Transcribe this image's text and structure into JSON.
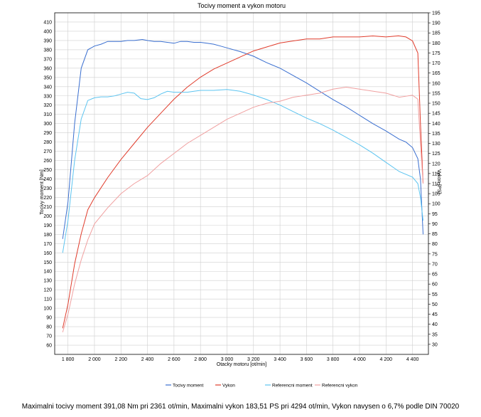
{
  "chart_data": {
    "type": "line",
    "title": "Tocivy moment a vykon motoru",
    "xlabel": "Otacky motoru [ot/min]",
    "ylabel_left": "Tocivy moment [Nm]",
    "ylabel_right": "Vykon [PS]",
    "xlim": [
      1700,
      4520
    ],
    "ylim_left": [
      50,
      420
    ],
    "ylim_right": [
      25,
      195
    ],
    "x_ticks": [
      1800,
      2000,
      2200,
      2400,
      2600,
      2800,
      3000,
      3200,
      3400,
      3600,
      3800,
      4000,
      4200,
      4400
    ],
    "x_tick_labels": [
      "1 800",
      "2 000",
      "2 200",
      "2 400",
      "2 600",
      "2 800",
      "3 000",
      "3 200",
      "3 400",
      "3 600",
      "3 800",
      "4 000",
      "4 200",
      "4 400"
    ],
    "y_left_ticks": [
      60,
      70,
      80,
      90,
      100,
      110,
      120,
      130,
      140,
      150,
      160,
      170,
      180,
      190,
      200,
      210,
      220,
      230,
      240,
      250,
      260,
      270,
      280,
      290,
      300,
      310,
      320,
      330,
      340,
      350,
      360,
      370,
      380,
      390,
      400,
      410
    ],
    "y_right_ticks": [
      30,
      35,
      40,
      45,
      50,
      55,
      60,
      65,
      70,
      75,
      80,
      85,
      90,
      95,
      100,
      105,
      110,
      115,
      120,
      125,
      130,
      135,
      140,
      145,
      150,
      155,
      160,
      165,
      170,
      175,
      180,
      185,
      190,
      195
    ],
    "grid": true,
    "series": [
      {
        "name": "Tocivy moment",
        "axis": "left",
        "color": "#3a6fd0",
        "x": [
          1760,
          1800,
          1850,
          1900,
          1950,
          2000,
          2050,
          2100,
          2150,
          2200,
          2250,
          2300,
          2361,
          2400,
          2450,
          2500,
          2550,
          2600,
          2650,
          2700,
          2750,
          2800,
          2850,
          2900,
          2950,
          3000,
          3100,
          3200,
          3300,
          3400,
          3500,
          3600,
          3700,
          3800,
          3900,
          4000,
          4100,
          4200,
          4300,
          4350,
          4400,
          4440,
          4460,
          4480
        ],
        "y": [
          175,
          215,
          300,
          360,
          380,
          384,
          386,
          389,
          389,
          389,
          390,
          390,
          391.08,
          390,
          389,
          389,
          388,
          387,
          389,
          389,
          388,
          388,
          387,
          386,
          384,
          382,
          378,
          373,
          366,
          360,
          352,
          344,
          335,
          326,
          318,
          309,
          300,
          292,
          283,
          280,
          274,
          262,
          240,
          180
        ]
      },
      {
        "name": "Vykon",
        "axis": "right",
        "color": "#e03c2c",
        "x": [
          1760,
          1800,
          1850,
          1900,
          1950,
          2000,
          2100,
          2200,
          2300,
          2400,
          2500,
          2600,
          2700,
          2800,
          2900,
          3000,
          3100,
          3200,
          3300,
          3400,
          3500,
          3600,
          3700,
          3800,
          3900,
          4000,
          4100,
          4200,
          4294,
          4350,
          4400,
          4440,
          4460,
          4480
        ],
        "y": [
          38,
          50,
          70,
          85,
          97,
          103,
          113,
          122,
          130,
          138,
          145,
          152,
          158,
          163,
          167,
          170,
          173,
          176,
          178,
          180,
          181,
          182,
          182,
          183,
          183,
          183,
          183.5,
          183,
          183.51,
          183,
          181,
          175,
          140,
          110
        ]
      },
      {
        "name": "Referencni moment",
        "axis": "left",
        "color": "#5cc4f0",
        "x": [
          1760,
          1800,
          1850,
          1900,
          1950,
          2000,
          2050,
          2100,
          2150,
          2200,
          2250,
          2300,
          2350,
          2400,
          2450,
          2500,
          2550,
          2600,
          2650,
          2700,
          2750,
          2800,
          2900,
          3000,
          3100,
          3200,
          3300,
          3400,
          3500,
          3600,
          3700,
          3800,
          3900,
          4000,
          4100,
          4200,
          4300,
          4400,
          4440,
          4460,
          4480
        ],
        "y": [
          160,
          195,
          260,
          305,
          325,
          328,
          329,
          329,
          330,
          332,
          334,
          333,
          327,
          326,
          328,
          332,
          335,
          334,
          334,
          334,
          335,
          336,
          336,
          337,
          335,
          331,
          326,
          320,
          313,
          306,
          300,
          293,
          285,
          277,
          268,
          258,
          248,
          242,
          235,
          220,
          195
        ]
      },
      {
        "name": "Referencni vykon",
        "axis": "right",
        "color": "#f0a0a0",
        "x": [
          1760,
          1800,
          1850,
          1900,
          1950,
          2000,
          2100,
          2200,
          2300,
          2400,
          2500,
          2600,
          2700,
          2800,
          2900,
          3000,
          3100,
          3200,
          3300,
          3400,
          3500,
          3600,
          3700,
          3800,
          3900,
          4000,
          4100,
          4200,
          4300,
          4400,
          4440,
          4460,
          4480
        ],
        "y": [
          36,
          45,
          60,
          72,
          82,
          90,
          98,
          105,
          110,
          114,
          120,
          125,
          130,
          134,
          138,
          142,
          145,
          148,
          150,
          151,
          153,
          154,
          155,
          157,
          158,
          157,
          156,
          155,
          153,
          154,
          152,
          130,
          110
        ]
      }
    ]
  },
  "legend": [
    {
      "label": "Tocivy moment",
      "color": "#3a6fd0"
    },
    {
      "label": "Vykon",
      "color": "#e03c2c"
    },
    {
      "label": "Referencni moment",
      "color": "#5cc4f0"
    },
    {
      "label": "Referencni vykon",
      "color": "#f0a0a0"
    }
  ],
  "footer": "Maximalni tocivy moment 391,08 Nm pri 2361 ot/min,  Maximalni vykon 183,51 PS pri 4294 ot/min,  Vykon navysen o 6,7% podle DIN 70020"
}
